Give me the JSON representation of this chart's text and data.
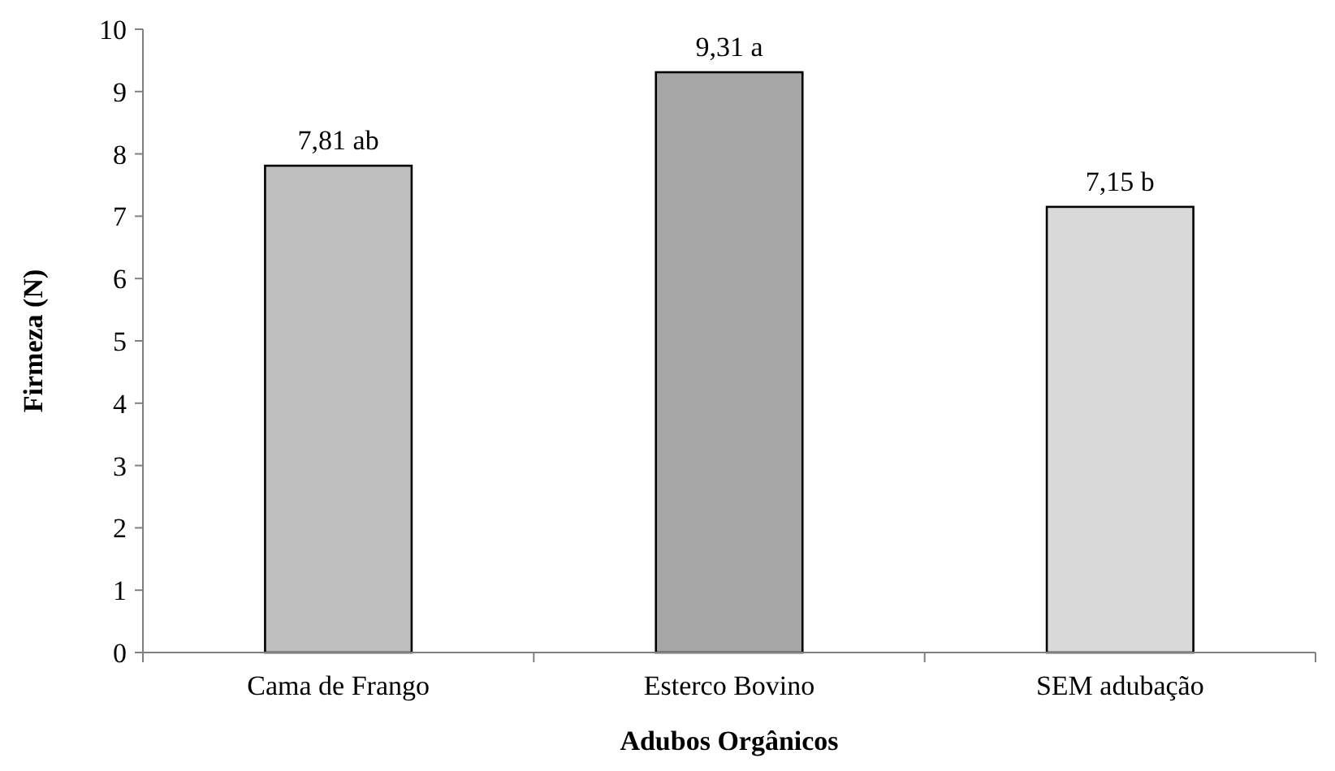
{
  "chart_data": {
    "type": "bar",
    "xlabel": "Adubos Orgânicos",
    "ylabel": "Firmeza (N)",
    "categories": [
      "Cama de Frango",
      "Esterco Bovino",
      "SEM adubação"
    ],
    "values": [
      7.81,
      9.31,
      7.15
    ],
    "colors": [
      "#bfbfbf",
      "#a6a6a6",
      "#d9d9d9"
    ],
    "value_labels": [
      "7,81 ab",
      "9,31 a",
      "7,15 b"
    ],
    "ylim": [
      0,
      10
    ],
    "yticks": [
      0,
      1,
      2,
      3,
      4,
      5,
      6,
      7,
      8,
      9,
      10
    ],
    "grid": false
  }
}
